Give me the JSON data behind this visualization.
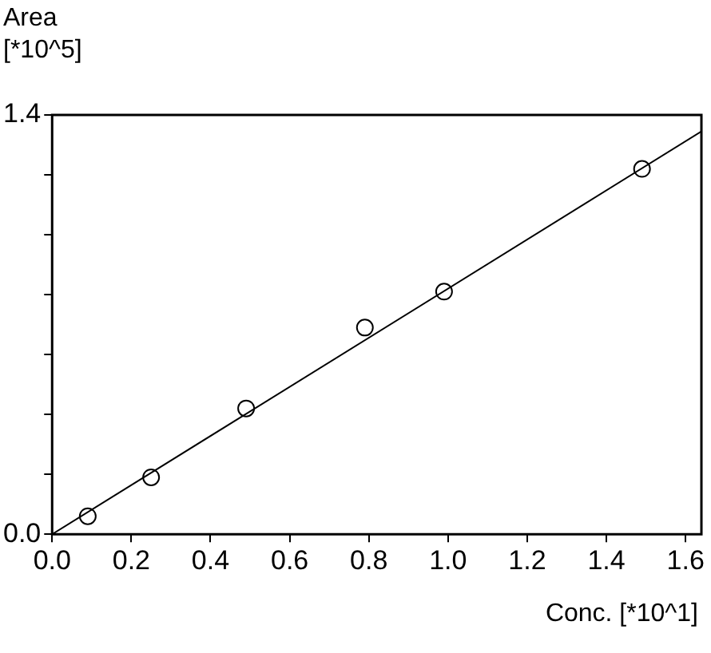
{
  "chart_data": {
    "type": "scatter",
    "xlabel": "Conc. [*10^1]",
    "ylabel": "Area\n[*10^5]",
    "xlim": [
      0,
      1.64
    ],
    "ylim": [
      0,
      1.4
    ],
    "xticks": [
      {
        "value": 0,
        "label": "0.0"
      },
      {
        "value": 0.2,
        "label": "0.2"
      },
      {
        "value": 0.4,
        "label": "0.4"
      },
      {
        "value": 0.6,
        "label": "0.6"
      },
      {
        "value": 0.8,
        "label": "0.8"
      },
      {
        "value": 1,
        "label": "1.0"
      },
      {
        "value": 1.2,
        "label": "1.2"
      },
      {
        "value": 1.4,
        "label": "1.4"
      },
      {
        "value": 1.6,
        "label": "1.6"
      }
    ],
    "yticks": [
      {
        "value": 0,
        "label": "0.0"
      },
      {
        "value": 0.2,
        "label": null
      },
      {
        "value": 0.4,
        "label": null
      },
      {
        "value": 0.6,
        "label": null
      },
      {
        "value": 0.8,
        "label": null
      },
      {
        "value": 1,
        "label": null
      },
      {
        "value": 1.2,
        "label": null
      },
      {
        "value": 1.4,
        "label": "1.4"
      }
    ],
    "grid": false,
    "legend": false,
    "marker": "circle",
    "series": [
      {
        "type": "scatter",
        "color": "#000000",
        "x": [
          0.09,
          0.25,
          0.49,
          0.79,
          0.99,
          1.49
        ],
        "values": [
          0.06,
          0.19,
          0.42,
          0.69,
          0.81,
          1.22
        ]
      },
      {
        "type": "line",
        "color": "#000000",
        "marker": "none",
        "line_style": "solid",
        "x": [
          0,
          1.64
        ],
        "values": [
          0,
          1.345
        ]
      }
    ]
  }
}
